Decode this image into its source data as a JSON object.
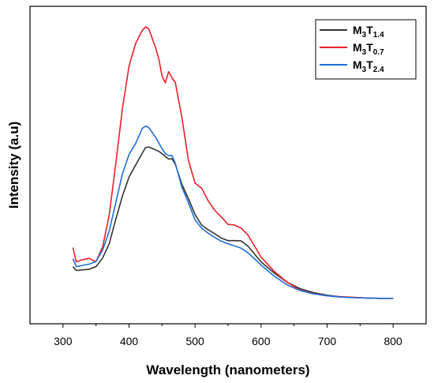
{
  "chart_data": {
    "type": "line",
    "xlabel": "Wavelength (nanometers)",
    "ylabel": "Intensity (a.u)",
    "xlim": [
      250,
      850
    ],
    "ylim": [
      0,
      1
    ],
    "xticks": [
      300,
      400,
      500,
      600,
      700,
      800
    ],
    "yticks_visible": false,
    "grid": false,
    "legend_position": "top-right",
    "series": [
      {
        "name": "M3T1.4",
        "label_base": "M",
        "label_sub1": "3",
        "label_mid": "T",
        "label_sub2": "1.4",
        "color": "#333333",
        "x": [
          315,
          320,
          330,
          340,
          345,
          350,
          360,
          370,
          380,
          390,
          400,
          410,
          420,
          425,
          430,
          440,
          445,
          450,
          455,
          460,
          465,
          470,
          480,
          490,
          500,
          510,
          520,
          530,
          540,
          550,
          560,
          570,
          580,
          590,
          600,
          620,
          640,
          660,
          680,
          700,
          720,
          740,
          760,
          780,
          800
        ],
        "y": [
          0.18,
          0.168,
          0.17,
          0.172,
          0.176,
          0.18,
          0.207,
          0.252,
          0.33,
          0.402,
          0.462,
          0.5,
          0.537,
          0.555,
          0.557,
          0.548,
          0.543,
          0.536,
          0.527,
          0.519,
          0.52,
          0.503,
          0.44,
          0.394,
          0.344,
          0.311,
          0.296,
          0.283,
          0.27,
          0.262,
          0.262,
          0.261,
          0.245,
          0.22,
          0.195,
          0.16,
          0.13,
          0.11,
          0.098,
          0.09,
          0.085,
          0.083,
          0.081,
          0.08,
          0.08
        ]
      },
      {
        "name": "M3T0.7",
        "label_base": "M",
        "label_sub1": "3",
        "label_mid": "T",
        "label_sub2": "0.7",
        "color": "#e8202a",
        "x": [
          315,
          320,
          330,
          340,
          345,
          350,
          360,
          370,
          380,
          390,
          400,
          410,
          420,
          425,
          430,
          440,
          445,
          450,
          455,
          460,
          465,
          470,
          480,
          490,
          500,
          510,
          520,
          530,
          540,
          550,
          560,
          570,
          580,
          590,
          600,
          620,
          640,
          660,
          680,
          700,
          720,
          740,
          760,
          780,
          800
        ],
        "y": [
          0.24,
          0.195,
          0.202,
          0.206,
          0.2,
          0.196,
          0.242,
          0.342,
          0.506,
          0.677,
          0.812,
          0.883,
          0.924,
          0.935,
          0.929,
          0.871,
          0.835,
          0.781,
          0.759,
          0.794,
          0.775,
          0.761,
          0.652,
          0.515,
          0.443,
          0.427,
          0.387,
          0.357,
          0.336,
          0.313,
          0.311,
          0.301,
          0.28,
          0.245,
          0.21,
          0.165,
          0.13,
          0.105,
          0.095,
          0.088,
          0.085,
          0.083,
          0.081,
          0.08,
          0.08
        ]
      },
      {
        "name": "M3T2.4",
        "label_base": "M",
        "label_sub1": "3",
        "label_mid": "T",
        "label_sub2": "2.4",
        "color": "#1e6fd9",
        "x": [
          315,
          320,
          330,
          340,
          345,
          350,
          360,
          370,
          380,
          390,
          400,
          410,
          420,
          425,
          430,
          440,
          445,
          450,
          455,
          460,
          465,
          470,
          480,
          490,
          500,
          510,
          520,
          530,
          540,
          550,
          560,
          570,
          580,
          590,
          600,
          620,
          640,
          660,
          680,
          700,
          720,
          740,
          760,
          780,
          800
        ],
        "y": [
          0.205,
          0.18,
          0.184,
          0.188,
          0.192,
          0.196,
          0.232,
          0.292,
          0.382,
          0.472,
          0.533,
          0.568,
          0.615,
          0.623,
          0.618,
          0.588,
          0.57,
          0.552,
          0.536,
          0.53,
          0.53,
          0.506,
          0.431,
          0.381,
          0.327,
          0.301,
          0.285,
          0.272,
          0.26,
          0.252,
          0.245,
          0.238,
          0.224,
          0.205,
          0.185,
          0.15,
          0.122,
          0.104,
          0.094,
          0.088,
          0.084,
          0.082,
          0.081,
          0.08,
          0.08
        ]
      }
    ]
  }
}
